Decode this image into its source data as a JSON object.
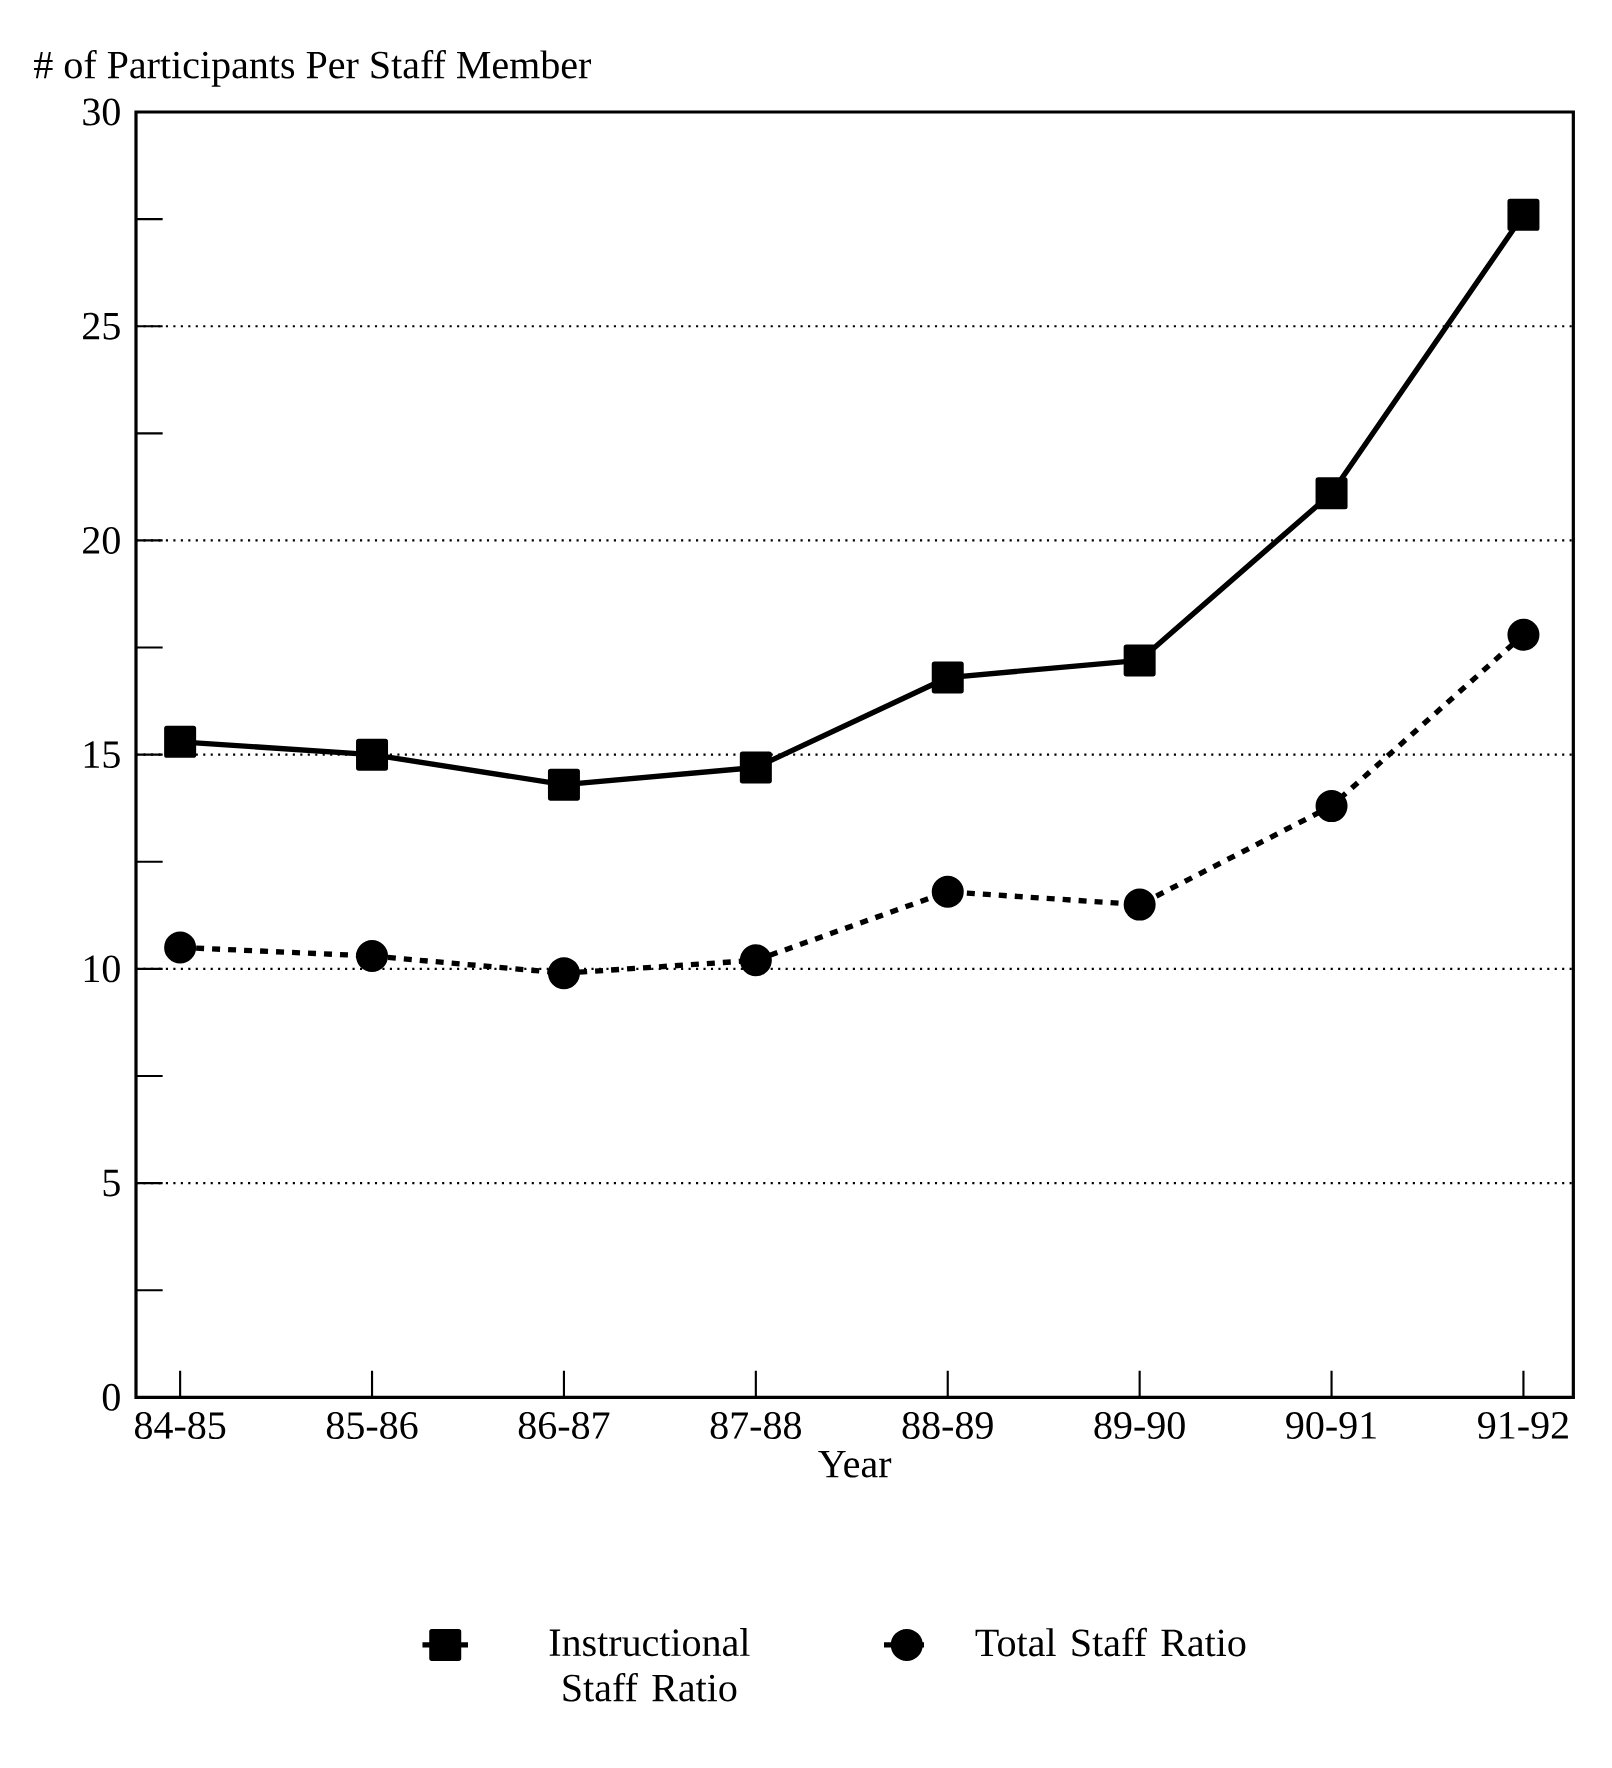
{
  "chart_data": {
    "type": "line",
    "ylabel": "# of Participants Per Staff Member",
    "xlabel": "Year",
    "categories": [
      "84-85",
      "85-86",
      "86-87",
      "87-88",
      "88-89",
      "89-90",
      "90-91",
      "91-92"
    ],
    "series": [
      {
        "name": "Instructional Staff Ratio",
        "color": "#000000",
        "marker": "square",
        "line_style": "solid",
        "values": [
          15.3,
          15.0,
          14.3,
          14.7,
          16.8,
          17.2,
          21.1,
          27.6
        ]
      },
      {
        "name": "Total Staff Ratio",
        "color": "#000000",
        "marker": "circle",
        "line_style": "dashed",
        "values": [
          10.5,
          10.3,
          9.9,
          10.2,
          11.8,
          11.5,
          13.8,
          17.8
        ]
      }
    ],
    "ylim": [
      0,
      30
    ],
    "yticks": [
      0,
      {
        "value": 2.5,
        "label": null
      },
      5,
      {
        "value": 7.5,
        "label": null
      },
      10,
      {
        "value": 12.5,
        "label": null
      },
      15,
      {
        "value": 17.5,
        "label": null
      },
      20,
      {
        "value": 22.5,
        "label": null
      },
      25,
      {
        "value": 27.5,
        "label": null
      },
      30
    ],
    "grid": "y",
    "legend": "bottom"
  }
}
